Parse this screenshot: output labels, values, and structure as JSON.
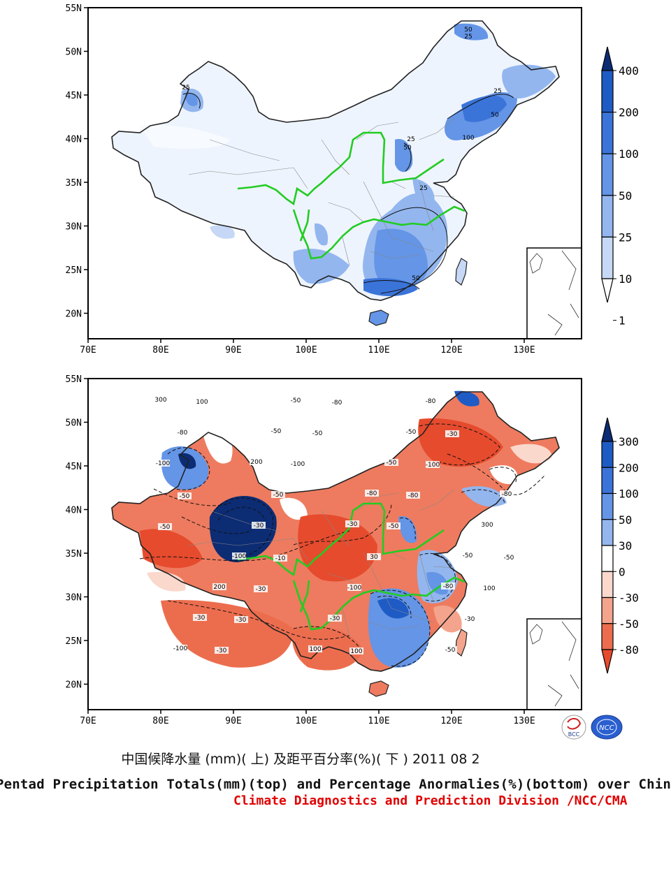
{
  "title_cn": "中国候降水量 (mm)( 上) 及距平百分率(%)( 下 ) 2011 08 2",
  "title_en": "Pentad Precipitation Totals(mm)(top) and Percentage Anormalies(%)(bottom) over China",
  "credit": "Climate Diagnostics and Prediction Division /NCC/CMA",
  "logos": {
    "bcc": "BCC",
    "ncc": "NCC"
  },
  "axes": {
    "lat_labels": [
      "55N",
      "50N",
      "45N",
      "40N",
      "35N",
      "30N",
      "25N",
      "20N"
    ],
    "lon_labels": [
      "70E",
      "80E",
      "90E",
      "100E",
      "110E",
      "120E",
      "130E"
    ]
  },
  "top_map": {
    "colorbar": {
      "labels": [
        "400",
        "200",
        "100",
        "50",
        "25",
        "10",
        "1"
      ],
      "colors": [
        "#0c2c74",
        "#1f5bc4",
        "#3b74d9",
        "#6495e6",
        "#93b6ef",
        "#c6d8f6",
        "#ffffff"
      ]
    },
    "contour_labels": [
      "50",
      "25",
      "25",
      "25",
      "50",
      "25",
      "100",
      "50",
      "25",
      "50"
    ]
  },
  "bottom_map": {
    "colorbar": {
      "labels": [
        "300",
        "200",
        "100",
        "50",
        "30",
        "0",
        "-30",
        "-50",
        "-80"
      ],
      "colors": [
        "#0c2c74",
        "#1f5bc4",
        "#3b74d9",
        "#6495e6",
        "#93b6ef",
        "#ffffff",
        "#fbd8cc",
        "#f4a48c",
        "#ec6d4e",
        "#e64b2d"
      ]
    },
    "contour_labels": [
      "300",
      "200",
      "-30",
      "-80",
      "-100",
      "-50",
      "-80",
      "-50",
      "-30",
      "-50",
      "-50",
      "300",
      "200",
      "100",
      "-50",
      "-80",
      "-100",
      "-30",
      "-80",
      "-100",
      "-30",
      "-100",
      "-50",
      "-80",
      "-50",
      "30",
      "-30",
      "100",
      "-100",
      "-50",
      "100",
      "-30",
      "-50",
      "-80",
      "-50",
      "-30",
      "-80",
      "-100",
      "-50",
      "-30",
      "100",
      "-30",
      "-50",
      "-10"
    ]
  }
}
